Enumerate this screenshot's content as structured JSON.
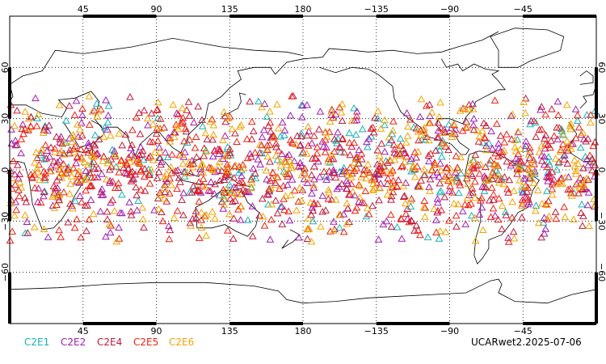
{
  "map": {
    "projection": "cylindrical-equidistant",
    "center_longitude": 180,
    "lon_range": [
      0,
      360
    ],
    "lat_range": [
      -90,
      90
    ],
    "gridlines": "dotted",
    "coastlines": true
  },
  "axes": {
    "lon_ticks": [
      {
        "lon": 45,
        "label": "45"
      },
      {
        "lon": 90,
        "label": "90"
      },
      {
        "lon": 135,
        "label": "135"
      },
      {
        "lon": 180,
        "label": "180"
      },
      {
        "lon": 225,
        "label": "−135"
      },
      {
        "lon": 270,
        "label": "−90"
      },
      {
        "lon": 315,
        "label": "−45"
      }
    ],
    "lat_ticks": [
      {
        "lat": 60,
        "label": "60"
      },
      {
        "lat": 30,
        "label": "30"
      },
      {
        "lat": 0,
        "label": "0"
      },
      {
        "lat": -30,
        "label": "−30"
      },
      {
        "lat": -60,
        "label": "−60"
      }
    ]
  },
  "chart_data": {
    "type": "scatter",
    "marker": "open-triangle",
    "lat_band": [
      -45,
      45
    ],
    "series": [
      {
        "name": "C2E1",
        "color": "#17b2b8",
        "count": 160
      },
      {
        "name": "C2E2",
        "color": "#a21bb5",
        "count": 300
      },
      {
        "name": "C2E4",
        "color": "#c0193a",
        "count": 360
      },
      {
        "name": "C2E5",
        "color": "#ee1f12",
        "count": 360
      },
      {
        "name": "C2E6",
        "color": "#f5a300",
        "count": 380
      }
    ]
  },
  "legend": [
    {
      "label": "C2E1",
      "color": "#17b2b8"
    },
    {
      "label": "C2E2",
      "color": "#a21bb5"
    },
    {
      "label": "C2E4",
      "color": "#c0193a"
    },
    {
      "label": "C2E5",
      "color": "#ee1f12"
    },
    {
      "label": "C2E6",
      "color": "#f5a300"
    }
  ],
  "footer": {
    "label": "UCARwet2.2025-07-06"
  }
}
